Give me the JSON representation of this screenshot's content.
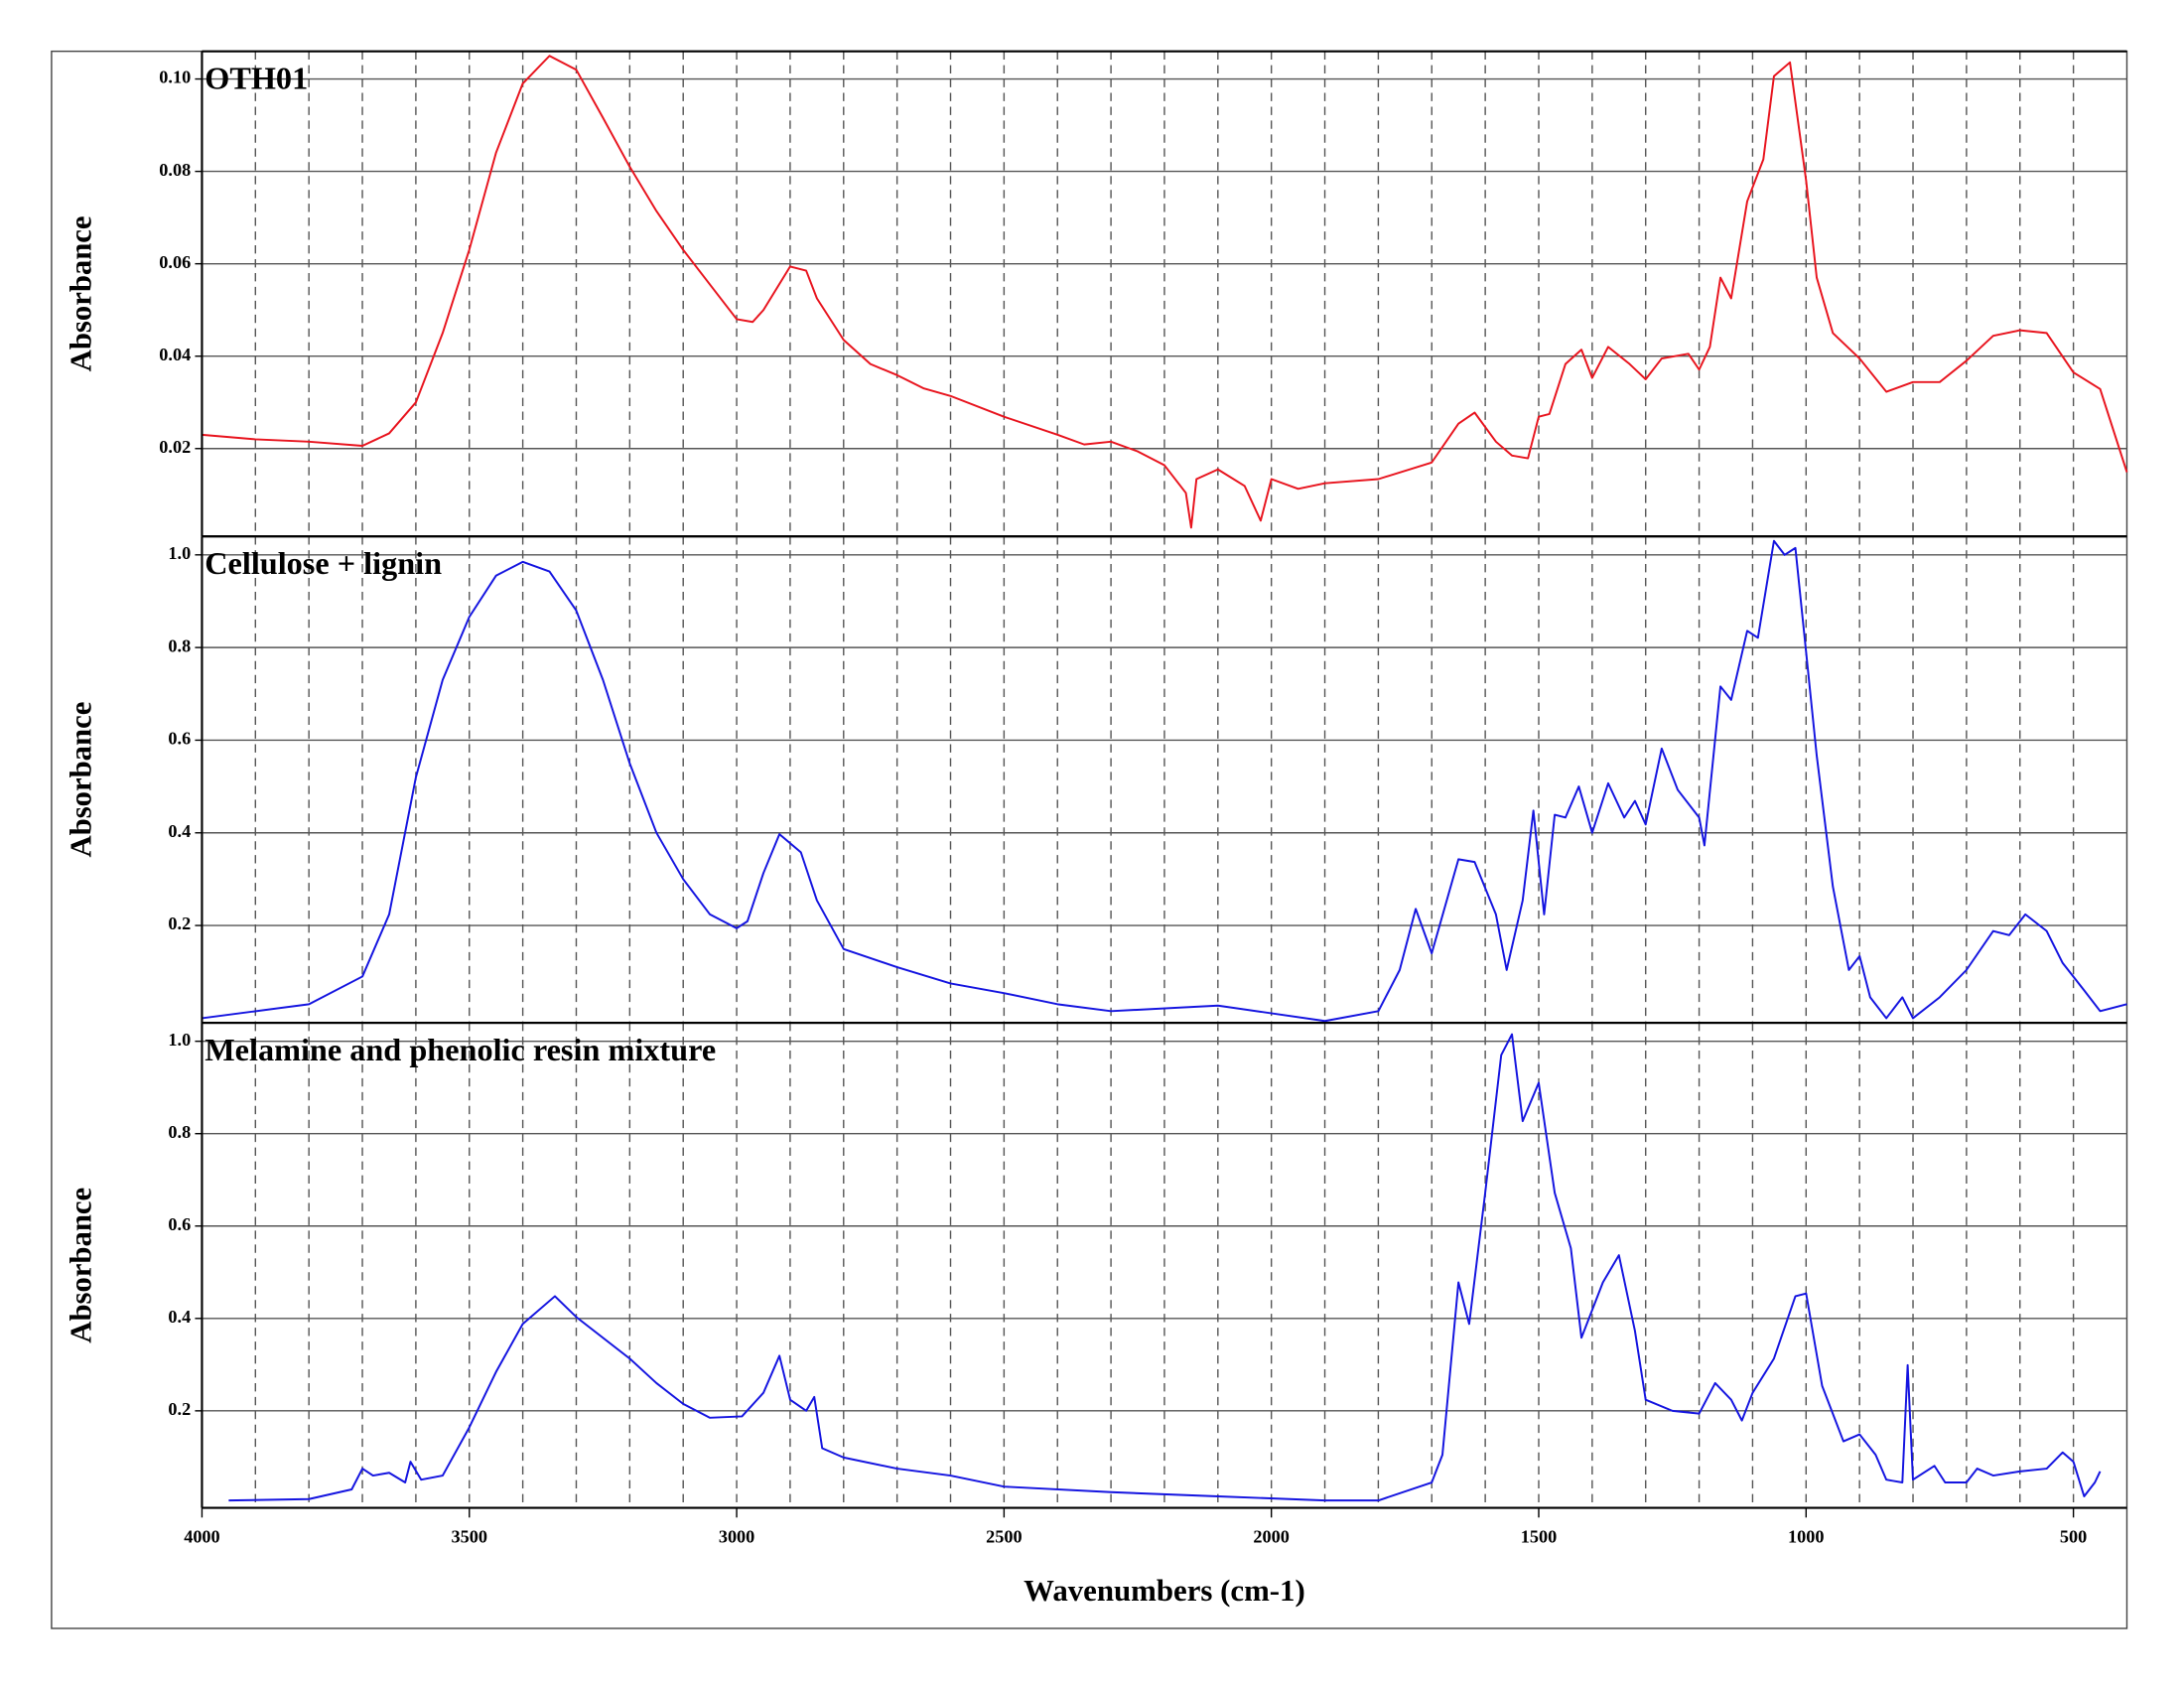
{
  "chart_data": [
    {
      "type": "line",
      "title": "OTH01",
      "ylabel": "Absorbance",
      "color": "#e8141e",
      "xlim": [
        4000,
        400
      ],
      "ylim": [
        0.001,
        0.106
      ],
      "yticks": [
        {
          "value": 0.1,
          "label": "0.10"
        },
        0.08,
        0.06,
        0.04,
        0.02
      ],
      "xgrid": [
        3900,
        3800,
        3700,
        3600,
        3500,
        3400,
        3300,
        3200,
        3100,
        3000,
        2900,
        2800,
        2700,
        2600,
        2500,
        2400,
        2300,
        2200,
        2100,
        2000,
        1900,
        1800,
        1700,
        1600,
        1500,
        1400,
        1300,
        1200,
        1100,
        1000,
        900,
        800,
        700,
        600,
        500
      ],
      "x": [
        4000,
        3900,
        3800,
        3700,
        3650,
        3600,
        3550,
        3500,
        3450,
        3400,
        3350,
        3300,
        3250,
        3200,
        3150,
        3100,
        3050,
        3000,
        2970,
        2950,
        2900,
        2870,
        2850,
        2800,
        2750,
        2700,
        2650,
        2600,
        2500,
        2400,
        2350,
        2300,
        2250,
        2200,
        2160,
        2150,
        2140,
        2100,
        2050,
        2020,
        2000,
        1950,
        1900,
        1800,
        1700,
        1650,
        1620,
        1580,
        1550,
        1520,
        1500,
        1480,
        1450,
        1420,
        1400,
        1370,
        1330,
        1300,
        1270,
        1220,
        1200,
        1180,
        1160,
        1140,
        1110,
        1080,
        1060,
        1030,
        1000,
        980,
        950,
        900,
        850,
        800,
        750,
        700,
        650,
        600,
        550,
        500,
        450,
        400
      ],
      "values": [
        0.023,
        0.022,
        0.0215,
        0.0206,
        0.0233,
        0.03,
        0.045,
        0.063,
        0.084,
        0.099,
        0.105,
        0.102,
        0.0916,
        0.081,
        0.0714,
        0.063,
        0.0555,
        0.048,
        0.0474,
        0.05,
        0.0594,
        0.0585,
        0.0525,
        0.0435,
        0.0383,
        0.0359,
        0.033,
        0.0314,
        0.0269,
        0.023,
        0.0209,
        0.0215,
        0.0194,
        0.0164,
        0.0104,
        0.0029,
        0.0134,
        0.0155,
        0.0119,
        0.0044,
        0.0134,
        0.0113,
        0.0125,
        0.0134,
        0.017,
        0.0254,
        0.0278,
        0.0215,
        0.0185,
        0.0179,
        0.0269,
        0.0275,
        0.0383,
        0.0414,
        0.0353,
        0.042,
        0.0383,
        0.035,
        0.0395,
        0.0405,
        0.0371,
        0.042,
        0.057,
        0.0525,
        0.0735,
        0.0826,
        0.1006,
        0.1036,
        0.078,
        0.057,
        0.045,
        0.0395,
        0.0323,
        0.0344,
        0.0344,
        0.039,
        0.0444,
        0.0456,
        0.045,
        0.0365,
        0.0329,
        0.0149
      ]
    },
    {
      "type": "line",
      "title": "Cellulose + lignin",
      "ylabel": "Absorbance",
      "color": "#1414e0",
      "xlim": [
        4000,
        400
      ],
      "ylim": [
        -0.01,
        1.04
      ],
      "yticks": [
        {
          "value": 1.0,
          "label": "1.0"
        },
        0.8,
        0.6,
        0.4,
        0.2
      ],
      "xgrid": [
        3900,
        3800,
        3700,
        3600,
        3500,
        3400,
        3300,
        3200,
        3100,
        3000,
        2900,
        2800,
        2700,
        2600,
        2500,
        2400,
        2300,
        2200,
        2100,
        2000,
        1900,
        1800,
        1700,
        1600,
        1500,
        1400,
        1300,
        1200,
        1100,
        1000,
        900,
        800,
        700,
        600,
        500
      ],
      "x": [
        4000,
        3800,
        3700,
        3650,
        3600,
        3550,
        3500,
        3450,
        3400,
        3350,
        3300,
        3250,
        3200,
        3150,
        3100,
        3050,
        3000,
        2980,
        2950,
        2920,
        2880,
        2850,
        2800,
        2700,
        2600,
        2500,
        2400,
        2300,
        2100,
        1900,
        1800,
        1760,
        1730,
        1700,
        1650,
        1620,
        1580,
        1560,
        1530,
        1510,
        1490,
        1470,
        1450,
        1425,
        1400,
        1370,
        1340,
        1320,
        1300,
        1270,
        1240,
        1200,
        1190,
        1160,
        1140,
        1110,
        1090,
        1060,
        1040,
        1020,
        1000,
        980,
        950,
        920,
        900,
        880,
        850,
        820,
        800,
        750,
        700,
        650,
        620,
        590,
        550,
        520,
        480,
        450,
        400
      ],
      "values": [
        0.0,
        0.03,
        0.09,
        0.224,
        0.52,
        0.73,
        0.866,
        0.955,
        0.985,
        0.964,
        0.88,
        0.73,
        0.55,
        0.4,
        0.3,
        0.224,
        0.194,
        0.209,
        0.313,
        0.397,
        0.358,
        0.254,
        0.149,
        0.11,
        0.075,
        0.054,
        0.03,
        0.015,
        0.027,
        -0.006,
        0.015,
        0.104,
        0.236,
        0.14,
        0.343,
        0.337,
        0.224,
        0.104,
        0.254,
        0.448,
        0.224,
        0.439,
        0.433,
        0.5,
        0.4,
        0.507,
        0.433,
        0.469,
        0.418,
        0.582,
        0.493,
        0.433,
        0.373,
        0.716,
        0.687,
        0.836,
        0.821,
        1.03,
        1.0,
        1.015,
        0.79,
        0.567,
        0.284,
        0.104,
        0.134,
        0.045,
        0.0,
        0.045,
        0.0,
        0.045,
        0.104,
        0.188,
        0.179,
        0.224,
        0.188,
        0.119,
        0.06,
        0.015,
        0.03
      ]
    },
    {
      "type": "line",
      "title": "Melamine and phenolic resin mixture",
      "ylabel": "Absorbance",
      "xlabel": "Wavenumbers (cm-1)",
      "color": "#1414e0",
      "xlim": [
        4000,
        400
      ],
      "ylim": [
        -0.01,
        1.04
      ],
      "yticks": [
        {
          "value": 1.0,
          "label": "1.0"
        },
        0.8,
        0.6,
        0.4,
        0.2
      ],
      "xticks": [
        4000,
        3500,
        3000,
        2500,
        2000,
        1500,
        1000,
        500
      ],
      "xgrid": [
        3900,
        3800,
        3700,
        3600,
        3500,
        3400,
        3300,
        3200,
        3100,
        3000,
        2900,
        2800,
        2700,
        2600,
        2500,
        2400,
        2300,
        2200,
        2100,
        2000,
        1900,
        1800,
        1700,
        1600,
        1500,
        1400,
        1300,
        1200,
        1100,
        1000,
        900,
        800,
        700,
        600,
        500
      ],
      "x": [
        3950,
        3800,
        3720,
        3700,
        3680,
        3650,
        3620,
        3610,
        3590,
        3550,
        3500,
        3450,
        3400,
        3340,
        3300,
        3200,
        3150,
        3100,
        3050,
        2990,
        2950,
        2920,
        2900,
        2870,
        2855,
        2840,
        2800,
        2700,
        2600,
        2500,
        2300,
        2100,
        1900,
        1800,
        1700,
        1680,
        1650,
        1630,
        1600,
        1570,
        1550,
        1530,
        1500,
        1470,
        1440,
        1420,
        1380,
        1350,
        1320,
        1300,
        1250,
        1200,
        1170,
        1140,
        1120,
        1100,
        1060,
        1020,
        1000,
        970,
        930,
        900,
        870,
        850,
        820,
        810,
        800,
        760,
        740,
        700,
        680,
        650,
        600,
        550,
        520,
        500,
        480,
        460,
        450
      ],
      "values": [
        0.006,
        0.009,
        0.03,
        0.075,
        0.06,
        0.066,
        0.045,
        0.09,
        0.051,
        0.06,
        0.164,
        0.284,
        0.388,
        0.448,
        0.403,
        0.313,
        0.26,
        0.215,
        0.185,
        0.188,
        0.239,
        0.319,
        0.224,
        0.2,
        0.23,
        0.119,
        0.099,
        0.075,
        0.06,
        0.036,
        0.024,
        0.015,
        0.006,
        0.006,
        0.045,
        0.105,
        0.478,
        0.388,
        0.672,
        0.97,
        1.015,
        0.827,
        0.91,
        0.672,
        0.552,
        0.358,
        0.478,
        0.537,
        0.373,
        0.224,
        0.2,
        0.194,
        0.26,
        0.224,
        0.179,
        0.239,
        0.313,
        0.448,
        0.454,
        0.254,
        0.134,
        0.149,
        0.105,
        0.051,
        0.045,
        0.299,
        0.051,
        0.081,
        0.045,
        0.045,
        0.075,
        0.06,
        0.069,
        0.075,
        0.11,
        0.09,
        0.015,
        0.045,
        0.069
      ]
    }
  ]
}
